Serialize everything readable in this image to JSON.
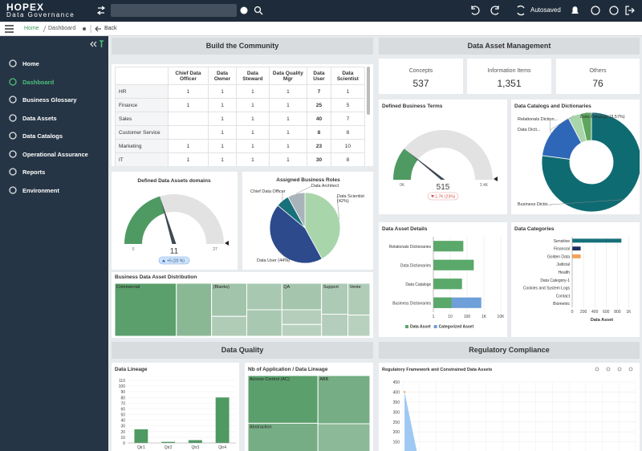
{
  "header": {
    "brand": "HOPEX",
    "product": "Data Governance",
    "status": "Autosaved"
  },
  "breadcrumb": {
    "home": "Home",
    "current": "Dashboard",
    "back": "Back"
  },
  "sidebar": {
    "items": [
      "Home",
      "Dashboard",
      "Business Glossary",
      "Data Assets",
      "Data Catalogs",
      "Operational Assurance",
      "Reports",
      "Environment"
    ],
    "active": 1
  },
  "sections": [
    "Build the Community",
    "Data Asset Management",
    "Data Quality",
    "Regulatory Compliance"
  ],
  "table": {
    "columns": [
      "Chief Data Officer",
      "Data Owner",
      "Data Steward",
      "Data Quality Mgr",
      "Data User",
      "Data Scientist"
    ],
    "rows": [
      {
        "label": "HR",
        "cells": [
          1,
          1,
          1,
          1,
          7,
          1
        ]
      },
      {
        "label": "Finance",
        "cells": [
          1,
          1,
          1,
          1,
          25,
          5
        ]
      },
      {
        "label": "Sales",
        "cells": [
          null,
          1,
          1,
          1,
          40,
          7
        ]
      },
      {
        "label": "Customer Service",
        "cells": [
          null,
          1,
          1,
          1,
          8,
          8
        ]
      },
      {
        "label": "Marketing",
        "cells": [
          1,
          1,
          1,
          1,
          23,
          10
        ]
      },
      {
        "label": "IT",
        "cells": [
          1,
          1,
          1,
          1,
          30,
          8
        ]
      }
    ]
  },
  "kpis": [
    {
      "label": "Concepts",
      "value": "537"
    },
    {
      "label": "Information Items",
      "value": "1,351"
    },
    {
      "label": "Others",
      "value": "76"
    }
  ],
  "chart_data": [
    {
      "type": "gauge",
      "title": "Defined Data Assets  domains",
      "value": 11,
      "min": 0,
      "max": 27,
      "delta": "+5 (20 %)",
      "color": "#4f9a63"
    },
    {
      "type": "pie",
      "title": "Assigned Business Roles",
      "categories": [
        "Data Scientist (42%)",
        "Data User (44%)",
        "Chief Data Officer",
        "Data Architect"
      ],
      "values": [
        42,
        44,
        6,
        8
      ],
      "colors": [
        "#a8d5aa",
        "#2c4a8c",
        "#17707a",
        "#a9b3ba"
      ]
    },
    {
      "type": "treemap",
      "title": "Business Data Asset Distribution",
      "color": "#5b9f6c",
      "groups": [
        {
          "items": [
            {
              "label": "Commercial",
              "value": 28
            }
          ]
        },
        {
          "items": [
            {
              "label": null,
              "value": 16
            }
          ]
        },
        {
          "items": [
            {
              "label": "(Blanks)",
              "value": 10
            },
            {
              "label": null,
              "value": 6
            }
          ]
        },
        {
          "items": [
            {
              "label": null,
              "value": 8
            },
            {
              "label": null,
              "value": 8
            }
          ]
        },
        {
          "items": [
            {
              "label": "QA",
              "value": 9
            },
            {
              "label": null,
              "value": 5
            },
            {
              "label": null,
              "value": 4
            }
          ]
        },
        {
          "items": [
            {
              "label": "Support",
              "value": 7
            },
            {
              "label": null,
              "value": 5
            }
          ]
        },
        {
          "items": [
            {
              "label": "Vente",
              "value": 6
            },
            {
              "label": null,
              "value": 4
            }
          ]
        }
      ]
    },
    {
      "type": "gauge",
      "title": "Defined Business Terms",
      "value": 515,
      "min": {
        "value": 0,
        "label": "0K"
      },
      "max": {
        "value": 2400,
        "label": "2.4K"
      },
      "delta": "-1.7K (23%)",
      "color": "#4f9a63"
    },
    {
      "type": "donut",
      "title": "Data Catalogs and Dictionaries",
      "categories": [
        "Business Dictio...",
        "Relationals Diction...",
        "Data Dicti...",
        "Data Catalogs (3.57%)"
      ],
      "values": [
        76,
        15,
        4,
        3.57
      ],
      "colors": [
        "#0f6b72",
        "#2f67b8",
        "#a8d5aa",
        "#5ea65f"
      ]
    },
    {
      "type": "bar",
      "orientation": "horizontal",
      "title": "Data Asset Details",
      "categories": [
        "Relationals Dictionaries",
        "Data Dictionaries",
        "Data Catalogs",
        "Business Dictionaries"
      ],
      "series": [
        {
          "name": "Data Asset",
          "color": "#5aa86a",
          "values": [
            60,
            250,
            50,
            12
          ]
        },
        {
          "name": "Categorized Asset",
          "color": "#6f9fd8",
          "values": [
            null,
            null,
            null,
            700
          ]
        }
      ],
      "xlim": [
        1,
        10000
      ],
      "xticks": [
        1,
        10,
        100,
        {
          "value": 1000,
          "label": "1K"
        },
        {
          "value": 10000,
          "label": "10K"
        }
      ],
      "log_x": true,
      "grid": true
    },
    {
      "type": "bar",
      "orientation": "horizontal",
      "title": "Data Categories",
      "xlabel": "Data Asset",
      "categories": [
        "Sensitive",
        "Financial",
        "Golden Data",
        "Judicial",
        "Health",
        "Data Category-1",
        "Cookies and System Logs",
        "Contact",
        "Biometric"
      ],
      "values": [
        870,
        150,
        150,
        0,
        0,
        0,
        0,
        0,
        0
      ],
      "colors": [
        "#17707a",
        "#1f2f5c",
        "#f0a35a",
        "#17707a",
        "#17707a",
        "#17707a",
        "#17707a",
        "#17707a",
        "#17707a"
      ],
      "xlim": [
        0,
        1050
      ],
      "xticks": [
        0,
        200,
        400,
        600,
        800,
        {
          "value": 1000,
          "label": "1K"
        }
      ],
      "grid": true
    },
    {
      "type": "bar",
      "orientation": "vertical",
      "title": "Data Lineage",
      "categories": [
        "Qtr1",
        "Qtr2",
        "Qtr3",
        "Qtr4"
      ],
      "values": [
        24,
        2,
        5,
        80
      ],
      "color": "#4f9a63",
      "ylim": [
        0,
        110
      ],
      "yticks": [
        0,
        10,
        20,
        30,
        40,
        50,
        60,
        70,
        80,
        90,
        100,
        110
      ],
      "grid": true
    },
    {
      "type": "treemap",
      "title": "Nb of Application / Data Lineage",
      "color": "#5b9f6c",
      "groups": [
        {
          "items": [
            {
              "label": "Access Control (AC)",
              "value": 40
            },
            {
              "label": "Abstraction",
              "value": 30
            }
          ]
        },
        {
          "items": [
            {
              "label": "ABB",
              "value": 30
            },
            {
              "label": null,
              "value": 22
            }
          ]
        }
      ]
    },
    {
      "type": "area",
      "title": "Regulatory Framework and Constrained Data Assets",
      "categories": [
        null,
        null
      ],
      "values": [
        400,
        0
      ],
      "color": "#8ec0f0",
      "ylim": [
        0,
        450
      ],
      "yticks": [
        150,
        200,
        250,
        300,
        350,
        400,
        450
      ],
      "grid": true
    }
  ]
}
